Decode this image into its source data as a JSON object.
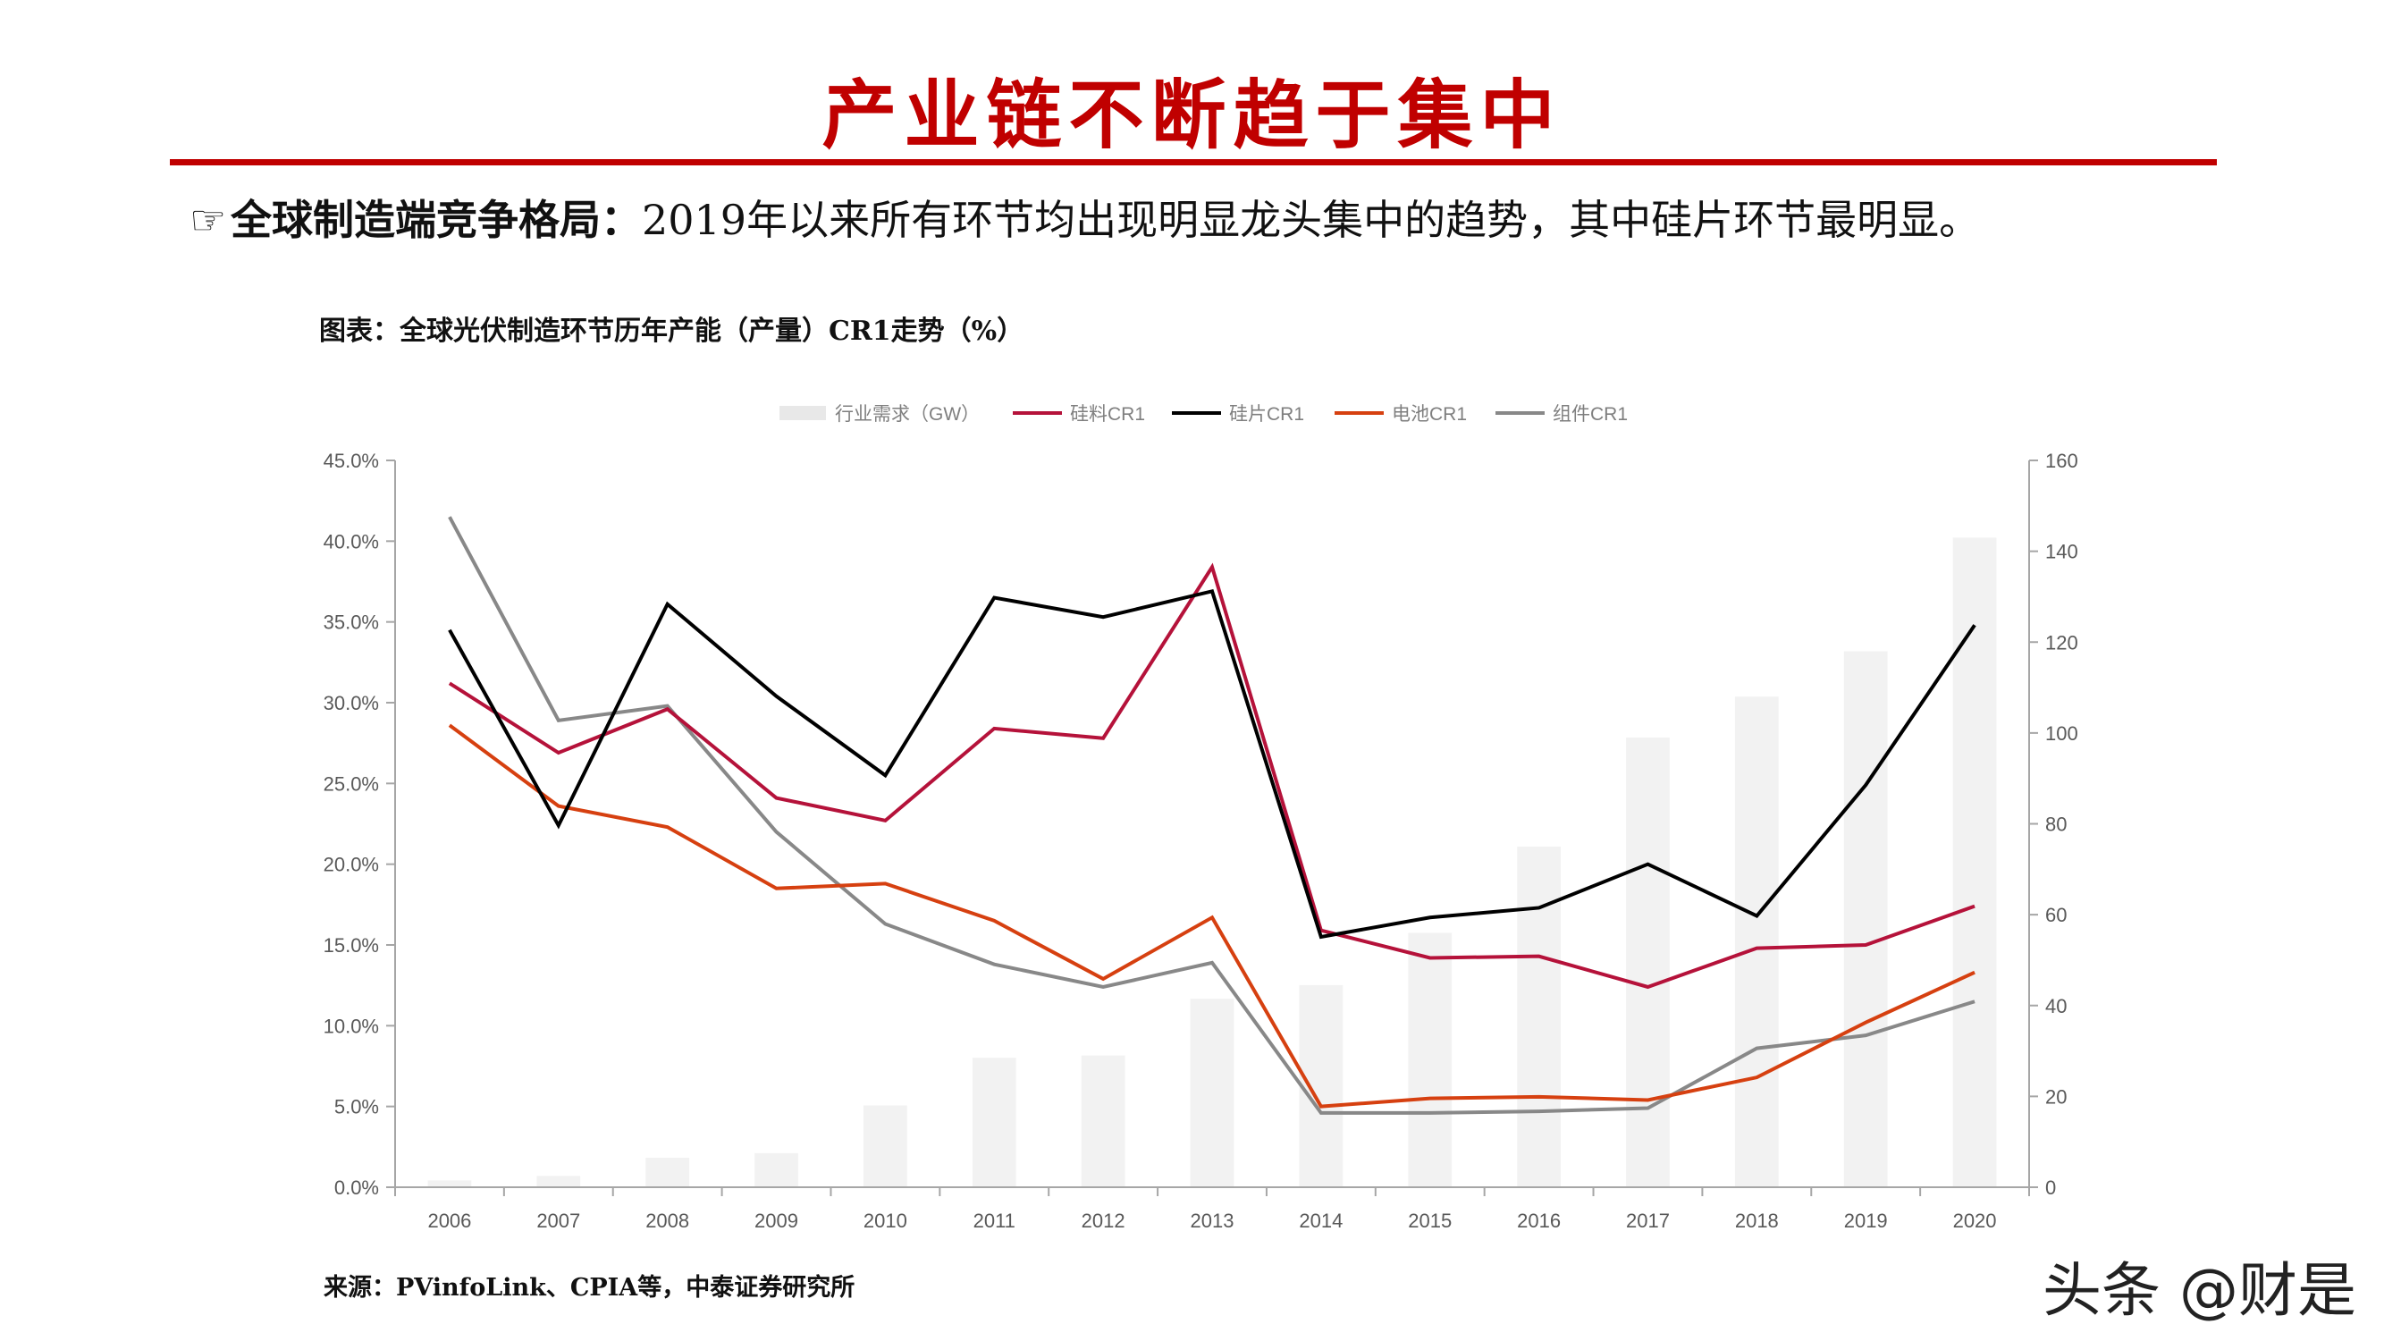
{
  "title": "产业链不断趋于集中",
  "subtitle": {
    "icon": "pointing-hand-icon",
    "bold": "全球制造端竞争格局：",
    "text": "2019年以来所有环节均出现明显龙头集中的趋势，其中硅片环节最明显。"
  },
  "figure_title": "图表：全球光伏制造环节历年产能（产量）CR1走势（%）",
  "source": "来源：PVinfoLink、CPIA等，中泰证券研究所",
  "watermark": "头条 @财是",
  "colors": {
    "title_red": "#c00000",
    "bars": "#f2f2f2",
    "silicon_material": "#b5123a",
    "wafer": "#000000",
    "cell": "#d64010",
    "module": "#888888"
  },
  "chart_data": {
    "type": "bar+line",
    "categories": [
      "2006",
      "2007",
      "2008",
      "2009",
      "2010",
      "2011",
      "2012",
      "2013",
      "2014",
      "2015",
      "2016",
      "2017",
      "2018",
      "2019",
      "2020"
    ],
    "left_axis": {
      "ylim": [
        0,
        45
      ],
      "ticks": [
        "0.0%",
        "5.0%",
        "10.0%",
        "15.0%",
        "20.0%",
        "25.0%",
        "30.0%",
        "35.0%",
        "40.0%",
        "45.0%"
      ]
    },
    "right_axis": {
      "ylim": [
        0,
        160
      ],
      "ticks": [
        "0",
        "20",
        "40",
        "60",
        "80",
        "100",
        "120",
        "140",
        "160"
      ]
    },
    "bar_series": {
      "name": "行业需求（GW）",
      "axis": "right",
      "values": [
        1.5,
        2.5,
        6.5,
        7.5,
        18,
        28.5,
        29,
        41.5,
        44.5,
        56,
        75,
        99,
        108,
        118,
        143
      ]
    },
    "series": [
      {
        "name": "硅料CR1",
        "axis": "left",
        "color_key": "silicon_material",
        "values": [
          31.2,
          26.9,
          29.6,
          24.1,
          22.7,
          28.4,
          27.8,
          38.4,
          15.9,
          14.2,
          14.3,
          12.4,
          14.8,
          15.0,
          17.4
        ]
      },
      {
        "name": "硅片CR1",
        "axis": "left",
        "color_key": "wafer",
        "values": [
          34.5,
          22.4,
          36.1,
          30.4,
          25.5,
          36.5,
          35.3,
          36.9,
          15.5,
          16.7,
          17.3,
          20.0,
          16.8,
          24.9,
          34.8
        ]
      },
      {
        "name": "电池CR1",
        "axis": "left",
        "color_key": "cell",
        "values": [
          28.6,
          23.6,
          22.3,
          18.5,
          18.8,
          16.5,
          12.9,
          16.7,
          5.0,
          5.5,
          5.6,
          5.4,
          6.8,
          10.2,
          13.3
        ]
      },
      {
        "name": "组件CR1",
        "axis": "left",
        "color_key": "module",
        "values": [
          41.5,
          28.9,
          29.8,
          22.0,
          16.3,
          13.8,
          12.4,
          13.9,
          4.6,
          4.6,
          4.7,
          4.9,
          8.6,
          9.4,
          11.5
        ]
      }
    ],
    "legend_position": "top",
    "grid": false
  }
}
